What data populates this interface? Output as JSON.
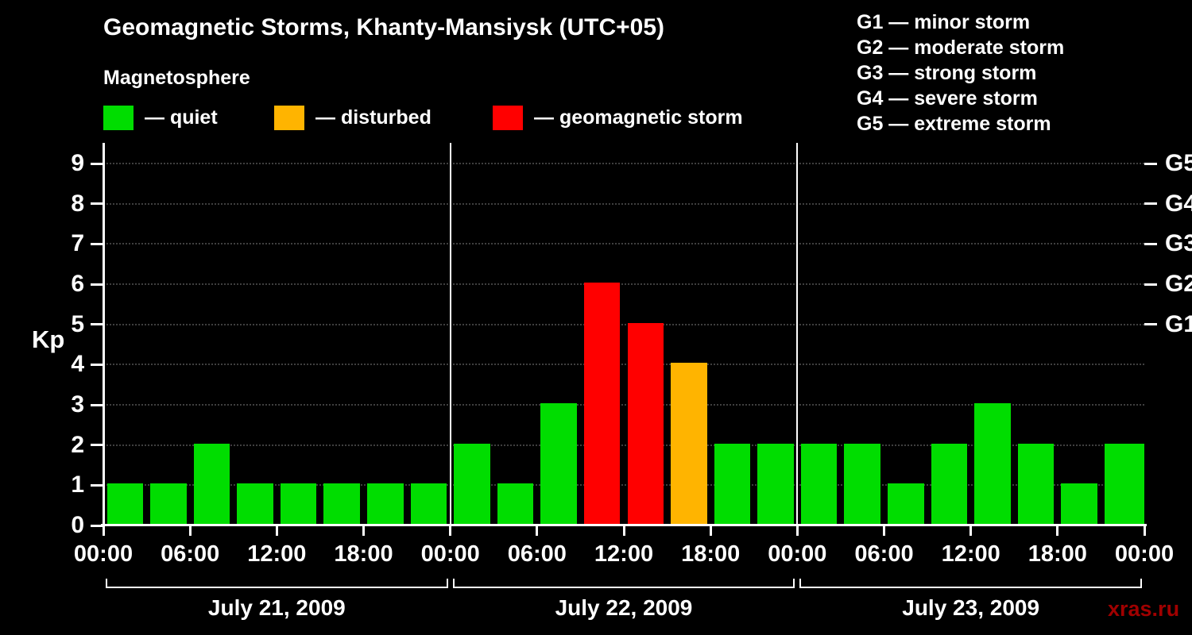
{
  "title": "Geomagnetic Storms, Khanty-Mansiysk (UTC+05)",
  "subtitle": "Magnetosphere",
  "watermark": "xras.ru",
  "colors": {
    "quiet": "#00dd00",
    "disturbed": "#ffb400",
    "storm": "#ff0000",
    "background": "#000000",
    "text": "#ffffff",
    "watermark": "#a00000",
    "grid": "#3f3f3f"
  },
  "legend": [
    {
      "label": "— quiet",
      "color_key": "quiet"
    },
    {
      "label": "— disturbed",
      "color_key": "disturbed"
    },
    {
      "label": "— geomagnetic storm",
      "color_key": "storm"
    }
  ],
  "g_scale_legend": [
    "G1 — minor storm",
    "G2 — moderate storm",
    "G3 — strong storm",
    "G4 — severe storm",
    "G5 — extreme storm"
  ],
  "chart_data": {
    "type": "bar",
    "title": "Geomagnetic Storms, Khanty-Mansiysk (UTC+05)",
    "ylabel": "Kp",
    "ylim": [
      0,
      9
    ],
    "y_ticks": [
      0,
      1,
      2,
      3,
      4,
      5,
      6,
      7,
      8,
      9
    ],
    "grid": "dotted horizontal lines at each Kp level",
    "right_axis_labels": [
      {
        "label": "G1",
        "kp": 5
      },
      {
        "label": "G2",
        "kp": 6
      },
      {
        "label": "G3",
        "kp": 7
      },
      {
        "label": "G4",
        "kp": 8
      },
      {
        "label": "G5",
        "kp": 9
      }
    ],
    "x_tick_labels": [
      "00:00",
      "06:00",
      "12:00",
      "18:00",
      "00:00",
      "06:00",
      "12:00",
      "18:00",
      "00:00",
      "06:00",
      "12:00",
      "18:00",
      "00:00"
    ],
    "hours_per_bar": 3,
    "days": [
      {
        "date": "July 21, 2009",
        "kp": [
          1,
          1,
          2,
          1,
          1,
          1,
          1,
          1
        ]
      },
      {
        "date": "July 22, 2009",
        "kp": [
          2,
          1,
          3,
          6,
          5,
          4,
          2,
          2
        ]
      },
      {
        "date": "July 23, 2009",
        "kp": [
          2,
          2,
          1,
          2,
          3,
          2,
          1,
          2
        ]
      }
    ],
    "trailing_partial_bar": {
      "kp": 2
    },
    "color_rules": {
      "storm_min_kp": 5,
      "disturbed_kp": 4,
      "quiet_max_kp": 3
    }
  }
}
